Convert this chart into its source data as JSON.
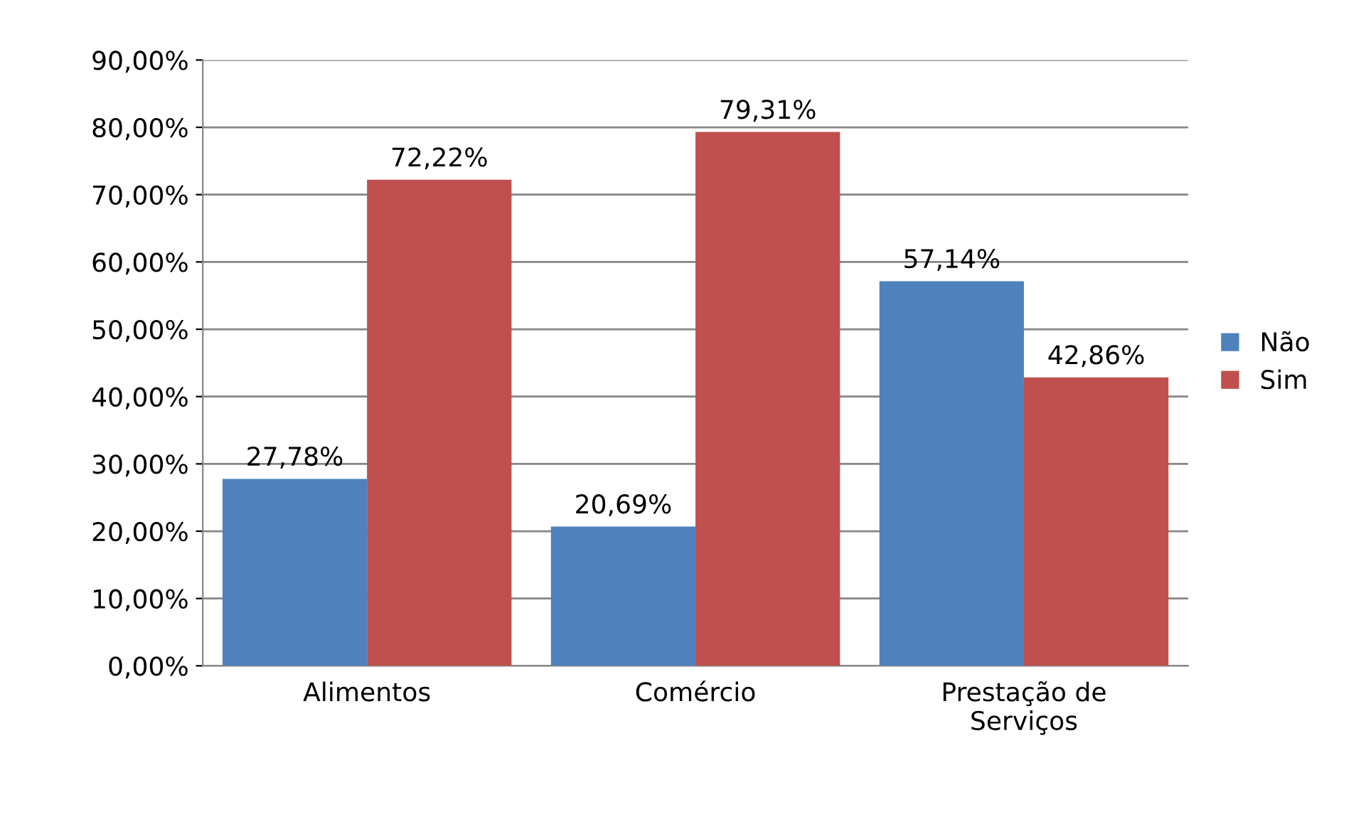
{
  "chart_data": {
    "type": "bar",
    "categories": [
      "Alimentos",
      "Comércio",
      "Prestação de Serviços"
    ],
    "series": [
      {
        "name": "Não",
        "color": "#4f81bd",
        "values": [
          27.78,
          20.69,
          57.14
        ],
        "value_labels": [
          "27,78%",
          "20,69%",
          "57,14%"
        ]
      },
      {
        "name": "Sim",
        "color": "#c0504d",
        "values": [
          72.22,
          79.31,
          42.86
        ],
        "value_labels": [
          "72,22%",
          "79,31%",
          "42,86%"
        ]
      }
    ],
    "ylim": [
      0,
      90
    ],
    "yticks": [
      {
        "value": 0,
        "label": "0,00%"
      },
      {
        "value": 10,
        "label": "10,00%"
      },
      {
        "value": 20,
        "label": "20,00%"
      },
      {
        "value": 30,
        "label": "30,00%"
      },
      {
        "value": 40,
        "label": "40,00%"
      },
      {
        "value": 50,
        "label": "50,00%"
      },
      {
        "value": 60,
        "label": "60,00%"
      },
      {
        "value": 70,
        "label": "70,00%"
      },
      {
        "value": 80,
        "label": "80,00%"
      },
      {
        "value": 90,
        "label": "90,00%"
      }
    ],
    "grid": "y",
    "legend": "right"
  }
}
